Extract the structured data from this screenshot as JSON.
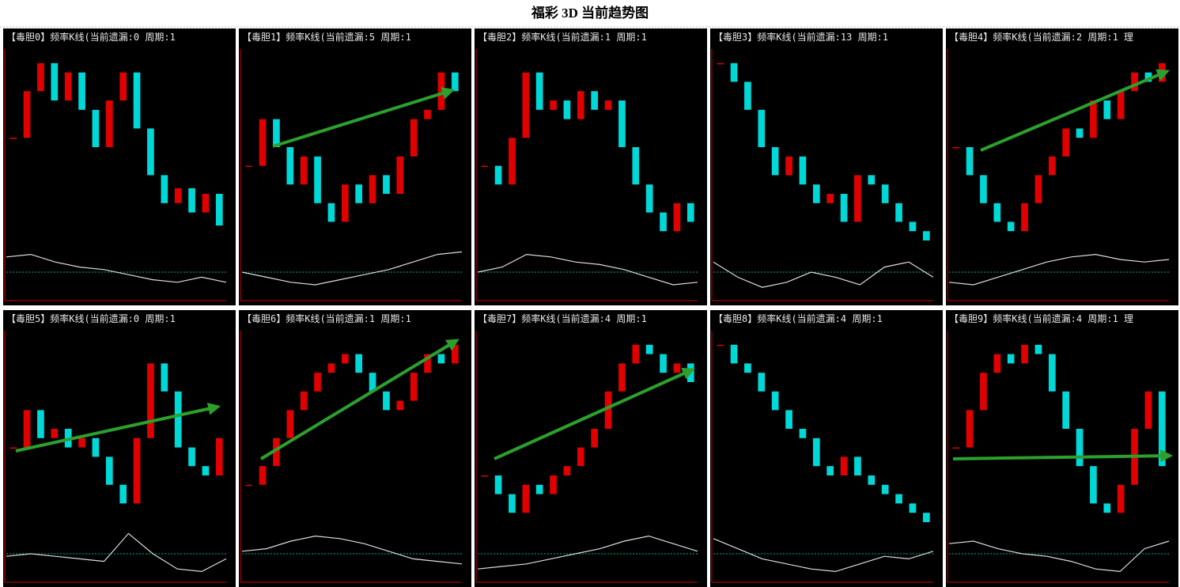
{
  "header": {
    "title": "福彩 3D 当前趋势图"
  },
  "ylim": [
    0,
    100
  ],
  "panels": [
    {
      "title": "【毒胆0】频率K线(当前遗漏:0 周期:1",
      "values": [
        55,
        80,
        95,
        75,
        90,
        70,
        50,
        75,
        90,
        60,
        35,
        20,
        28,
        15,
        25,
        8
      ],
      "indicator": [
        80,
        85,
        70,
        60,
        55,
        45,
        35,
        30,
        40,
        30
      ]
    },
    {
      "title": "【毒胆1】频率K线(当前遗漏:5 周期:1",
      "values": [
        40,
        65,
        50,
        30,
        45,
        20,
        10,
        30,
        20,
        35,
        25,
        45,
        65,
        70,
        90,
        80
      ],
      "indicator": [
        50,
        40,
        30,
        25,
        35,
        45,
        55,
        70,
        85,
        90
      ]
    },
    {
      "title": "【毒胆2】频率K线(当前遗漏:1 周期:1",
      "values": [
        40,
        30,
        55,
        90,
        70,
        75,
        65,
        80,
        70,
        75,
        50,
        30,
        15,
        5,
        20,
        10
      ],
      "indicator": [
        50,
        60,
        85,
        80,
        70,
        65,
        55,
        40,
        25,
        30
      ]
    },
    {
      "title": "【毒胆3】频率K线(当前遗漏:13 周期:1",
      "values": [
        95,
        85,
        70,
        50,
        35,
        45,
        30,
        20,
        25,
        10,
        35,
        30,
        20,
        10,
        5,
        0
      ],
      "indicator": [
        70,
        40,
        20,
        30,
        50,
        40,
        25,
        60,
        70,
        40
      ]
    },
    {
      "title": "【毒胆4】频率K线(当前遗漏:2 周期:1 理",
      "values": [
        50,
        35,
        20,
        10,
        5,
        20,
        35,
        45,
        60,
        55,
        75,
        65,
        80,
        90,
        85,
        95
      ],
      "indicator": [
        30,
        25,
        40,
        55,
        70,
        80,
        85,
        75,
        70,
        75
      ]
    },
    {
      "title": "【毒胆5】频率K线(当前遗漏:0 周期:1",
      "values": [
        40,
        60,
        45,
        50,
        40,
        45,
        35,
        20,
        10,
        45,
        85,
        70,
        40,
        30,
        25,
        45
      ],
      "indicator": [
        45,
        50,
        45,
        40,
        35,
        90,
        50,
        20,
        15,
        40
      ]
    },
    {
      "title": "【毒胆6】频率K线(当前遗漏:1 周期:1",
      "values": [
        20,
        30,
        45,
        60,
        70,
        80,
        85,
        90,
        80,
        70,
        60,
        65,
        80,
        90,
        85,
        95
      ],
      "indicator": [
        55,
        60,
        75,
        85,
        80,
        70,
        55,
        40,
        35,
        30
      ]
    },
    {
      "title": "【毒胆7】频率K线(当前遗漏:4 周期:1",
      "values": [
        25,
        15,
        5,
        20,
        15,
        25,
        30,
        40,
        50,
        70,
        85,
        95,
        90,
        80,
        85,
        75
      ],
      "indicator": [
        20,
        25,
        30,
        40,
        50,
        60,
        75,
        85,
        70,
        55
      ]
    },
    {
      "title": "【毒胆8】频率K线(当前遗漏:4 周期:1",
      "values": [
        95,
        85,
        80,
        70,
        60,
        50,
        45,
        30,
        25,
        35,
        25,
        20,
        15,
        10,
        5,
        0
      ],
      "indicator": [
        80,
        60,
        40,
        30,
        20,
        15,
        30,
        45,
        40,
        55
      ]
    },
    {
      "title": "【毒胆9】频率K线(当前遗漏:4 周期:1 理",
      "values": [
        40,
        60,
        80,
        90,
        85,
        95,
        90,
        70,
        50,
        30,
        10,
        5,
        20,
        50,
        70,
        30
      ],
      "indicator": [
        70,
        75,
        60,
        50,
        45,
        35,
        20,
        15,
        60,
        75
      ]
    }
  ]
}
